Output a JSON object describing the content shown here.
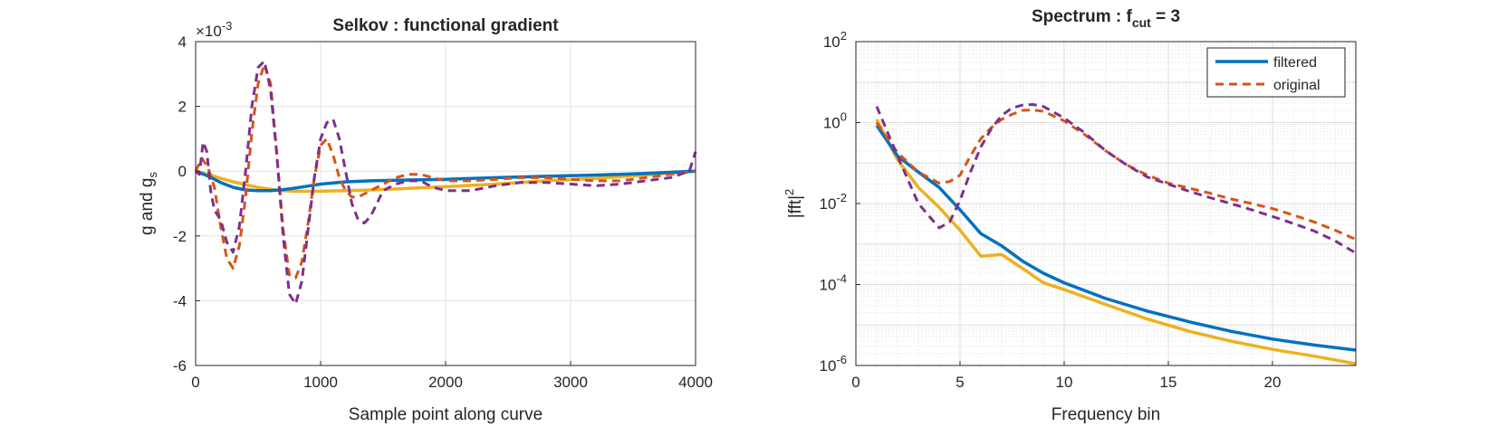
{
  "chart_data": [
    {
      "type": "line",
      "title": "Selkov : functional gradient",
      "xlabel": "Sample point along curve",
      "ylabel": "g and g",
      "ylabel_sub": "s",
      "exponent_label": "×10",
      "exponent_value": "-3",
      "xlim": [
        0,
        4000
      ],
      "ylim": [
        -6,
        4
      ],
      "xticks": [
        "0",
        "1000",
        "2000",
        "3000",
        "4000"
      ],
      "yticks": [
        "-6",
        "-4",
        "-2",
        "0",
        "2",
        "4"
      ],
      "grid": true,
      "series": [
        {
          "color": "#0072BD",
          "style": "solid",
          "x": [
            0,
            100,
            200,
            300,
            400,
            500,
            600,
            700,
            800,
            900,
            1000,
            1200,
            1400,
            1600,
            2000,
            2400,
            2800,
            3200,
            3600,
            4000
          ],
          "y": [
            0,
            -0.15,
            -0.35,
            -0.5,
            -0.58,
            -0.6,
            -0.6,
            -0.57,
            -0.52,
            -0.46,
            -0.4,
            -0.33,
            -0.3,
            -0.28,
            -0.25,
            -0.2,
            -0.16,
            -0.12,
            -0.07,
            0
          ]
        },
        {
          "color": "#EDB120",
          "style": "solid",
          "x": [
            0,
            100,
            200,
            300,
            400,
            500,
            600,
            700,
            800,
            900,
            1000,
            1200,
            1400,
            1600,
            2000,
            2400,
            2800,
            3200,
            3600,
            4000
          ],
          "y": [
            0,
            -0.1,
            -0.22,
            -0.33,
            -0.42,
            -0.5,
            -0.56,
            -0.6,
            -0.62,
            -0.62,
            -0.62,
            -0.6,
            -0.58,
            -0.55,
            -0.48,
            -0.4,
            -0.3,
            -0.22,
            -0.12,
            0
          ]
        },
        {
          "color": "#D95319",
          "style": "dashed",
          "x": [
            0,
            50,
            100,
            150,
            200,
            250,
            300,
            350,
            400,
            450,
            500,
            550,
            600,
            650,
            700,
            750,
            800,
            850,
            900,
            950,
            1000,
            1050,
            1100,
            1150,
            1200,
            1250,
            1300,
            1350,
            1400,
            1500,
            1600,
            1700,
            1800,
            1900,
            2000,
            2200,
            2400,
            2600,
            2800,
            3000,
            3200,
            3400,
            3600,
            3800,
            4000
          ],
          "y": [
            0,
            0.4,
            0.1,
            -0.5,
            -1.7,
            -2.7,
            -3.0,
            -2.3,
            -0.8,
            1.2,
            2.7,
            3.3,
            2.7,
            0.5,
            -1.8,
            -3.2,
            -3.3,
            -2.8,
            -1.6,
            -0.2,
            0.8,
            1.0,
            0.5,
            -0.2,
            -0.6,
            -0.8,
            -0.8,
            -0.7,
            -0.6,
            -0.4,
            -0.2,
            -0.1,
            -0.1,
            -0.2,
            -0.3,
            -0.3,
            -0.25,
            -0.2,
            -0.2,
            -0.25,
            -0.3,
            -0.3,
            -0.2,
            -0.1,
            0
          ]
        },
        {
          "color": "#7E2F8E",
          "style": "dashed",
          "x": [
            0,
            30,
            60,
            90,
            120,
            150,
            200,
            250,
            300,
            350,
            400,
            450,
            500,
            550,
            600,
            650,
            700,
            750,
            800,
            850,
            900,
            950,
            1000,
            1050,
            1100,
            1150,
            1200,
            1250,
            1300,
            1350,
            1400,
            1450,
            1500,
            1600,
            1700,
            1800,
            1900,
            2000,
            2200,
            2400,
            2600,
            2800,
            3000,
            3200,
            3400,
            3600,
            3800,
            3950,
            4000
          ],
          "y": [
            0,
            -0.1,
            0.9,
            0.6,
            -0.6,
            -1.2,
            -1.5,
            -2.2,
            -2.5,
            -1.7,
            0.0,
            2.0,
            3.2,
            3.4,
            2.5,
            0.5,
            -2.0,
            -3.8,
            -4.1,
            -3.4,
            -1.8,
            -0.2,
            1.0,
            1.5,
            1.6,
            1.0,
            0.0,
            -1.0,
            -1.5,
            -1.6,
            -1.4,
            -1.0,
            -0.6,
            -0.4,
            -0.3,
            -0.3,
            -0.5,
            -0.6,
            -0.6,
            -0.45,
            -0.35,
            -0.35,
            -0.4,
            -0.45,
            -0.4,
            -0.3,
            -0.2,
            0.0,
            0.6
          ]
        }
      ]
    },
    {
      "type": "line",
      "title": "Spectrum : f",
      "title_sub": "cut",
      "title_tail": " = 3",
      "xlabel": "Frequency bin",
      "ylabel": "|fft|",
      "ylabel_sup": "2",
      "xlim": [
        0,
        24
      ],
      "ylim": [
        1e-06,
        100
      ],
      "yscale": "log",
      "xticks": [
        "0",
        "5",
        "10",
        "15",
        "20"
      ],
      "yticks": [
        {
          "base": "10",
          "exp": "-6"
        },
        {
          "base": "10",
          "exp": "-4"
        },
        {
          "base": "10",
          "exp": "-2"
        },
        {
          "base": "10",
          "exp": "0"
        },
        {
          "base": "10",
          "exp": "2"
        }
      ],
      "grid": true,
      "minor_grid": true,
      "legend_position": "top-right",
      "series": [
        {
          "name": "filtered",
          "color": "#0072BD",
          "style": "solid",
          "x": [
            1,
            2,
            3,
            4,
            5,
            6,
            7,
            8,
            9,
            10,
            12,
            14,
            16,
            18,
            20,
            22,
            24
          ],
          "y": [
            0.85,
            0.15,
            0.06,
            0.025,
            0.007,
            0.0018,
            0.0009,
            0.00038,
            0.00019,
            0.00011,
            4.5e-05,
            2.2e-05,
            1.2e-05,
            7e-06,
            4.5e-06,
            3.2e-06,
            2.4e-06
          ]
        },
        {
          "name": "original",
          "color": "#D95319",
          "style": "dashed",
          "x": [
            1,
            2,
            3,
            4,
            4.5,
            5,
            5.5,
            6,
            6.5,
            7,
            7.5,
            8,
            8.5,
            9,
            10,
            11,
            12,
            13,
            14,
            15,
            16,
            17,
            18,
            19,
            20,
            21,
            22,
            23,
            24
          ],
          "y": [
            1.0,
            0.18,
            0.06,
            0.032,
            0.035,
            0.05,
            0.15,
            0.4,
            0.75,
            1.2,
            1.6,
            2.0,
            2.05,
            1.9,
            1.1,
            0.5,
            0.2,
            0.09,
            0.05,
            0.032,
            0.024,
            0.018,
            0.013,
            0.01,
            0.0075,
            0.0052,
            0.0035,
            0.0022,
            0.0013
          ]
        }
      ],
      "unlabeled_series": [
        {
          "color": "#EDB120",
          "style": "solid",
          "x": [
            1,
            2,
            3,
            4,
            5,
            6,
            7,
            8,
            9,
            10,
            12,
            14,
            16,
            18,
            20,
            22,
            24
          ],
          "y": [
            1.2,
            0.12,
            0.025,
            0.008,
            0.0022,
            0.0005,
            0.00055,
            0.00025,
            0.00011,
            7.5e-05,
            3.2e-05,
            1.4e-05,
            7e-06,
            4e-06,
            2.5e-06,
            1.7e-06,
            1.1e-06
          ]
        },
        {
          "color": "#7E2F8E",
          "style": "dashed",
          "x": [
            1,
            2,
            3,
            4,
            4.5,
            5,
            5.5,
            6,
            6.5,
            7,
            7.5,
            8,
            8.5,
            9,
            10,
            11,
            12,
            13,
            14,
            15,
            16,
            17,
            18,
            19,
            20,
            21,
            22,
            23,
            24
          ],
          "y": [
            2.5,
            0.15,
            0.01,
            0.0025,
            0.0035,
            0.012,
            0.06,
            0.25,
            0.7,
            1.5,
            2.3,
            2.7,
            2.8,
            2.5,
            1.3,
            0.55,
            0.2,
            0.09,
            0.045,
            0.03,
            0.02,
            0.014,
            0.01,
            0.007,
            0.0048,
            0.0032,
            0.0021,
            0.0012,
            0.0006
          ]
        }
      ]
    }
  ]
}
